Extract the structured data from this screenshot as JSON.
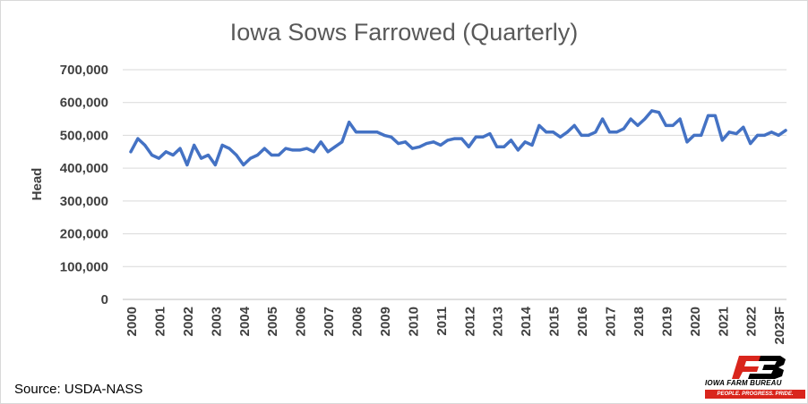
{
  "chart_data": {
    "type": "line",
    "title": "Iowa Sows Farrowed (Quarterly)",
    "xlabel": "",
    "ylabel": "Head",
    "ylim": [
      0,
      700000
    ],
    "yticks": [
      "0",
      "100,000",
      "200,000",
      "300,000",
      "400,000",
      "500,000",
      "600,000",
      "700,000"
    ],
    "ytick_values": [
      0,
      100000,
      200000,
      300000,
      400000,
      500000,
      600000,
      700000
    ],
    "xtick_labels": [
      "2000",
      "2001",
      "2002",
      "2003",
      "2004",
      "2005",
      "2006",
      "2007",
      "2008",
      "2009",
      "2010",
      "2011",
      "2012",
      "2013",
      "2014",
      "2015",
      "2016",
      "2017",
      "2018",
      "2019",
      "2020",
      "2021",
      "2022",
      "2023F"
    ],
    "grid": true,
    "legend": "none",
    "color": "#4472c4",
    "series": [
      {
        "values": [
          450000,
          490000,
          470000,
          440000,
          430000,
          450000,
          440000,
          460000,
          410000,
          470000,
          430000,
          440000,
          410000,
          470000,
          460000,
          440000,
          410000,
          430000,
          440000,
          460000,
          440000,
          440000,
          460000,
          455000,
          455000,
          460000,
          450000,
          480000,
          450000,
          465000,
          480000,
          540000,
          510000,
          510000,
          510000,
          510000,
          500000,
          495000,
          475000,
          480000,
          460000,
          465000,
          475000,
          480000,
          470000,
          485000,
          490000,
          490000,
          465000,
          495000,
          495000,
          505000,
          465000,
          465000,
          485000,
          455000,
          480000,
          470000,
          530000,
          510000,
          510000,
          495000,
          510000,
          530000,
          500000,
          500000,
          510000,
          550000,
          510000,
          510000,
          520000,
          550000,
          530000,
          550000,
          575000,
          570000,
          530000,
          530000,
          550000,
          480000,
          500000,
          500000,
          560000,
          560000,
          485000,
          510000,
          505000,
          525000,
          475000,
          500000,
          500000,
          510000,
          500000,
          515000
        ]
      }
    ]
  },
  "source": "Source: USDA-NASS",
  "logo": {
    "name": "IOWA FARM BUREAU",
    "tagline": "PEOPLE. PROGRESS. PRIDE.",
    "color": "#d9251c"
  }
}
